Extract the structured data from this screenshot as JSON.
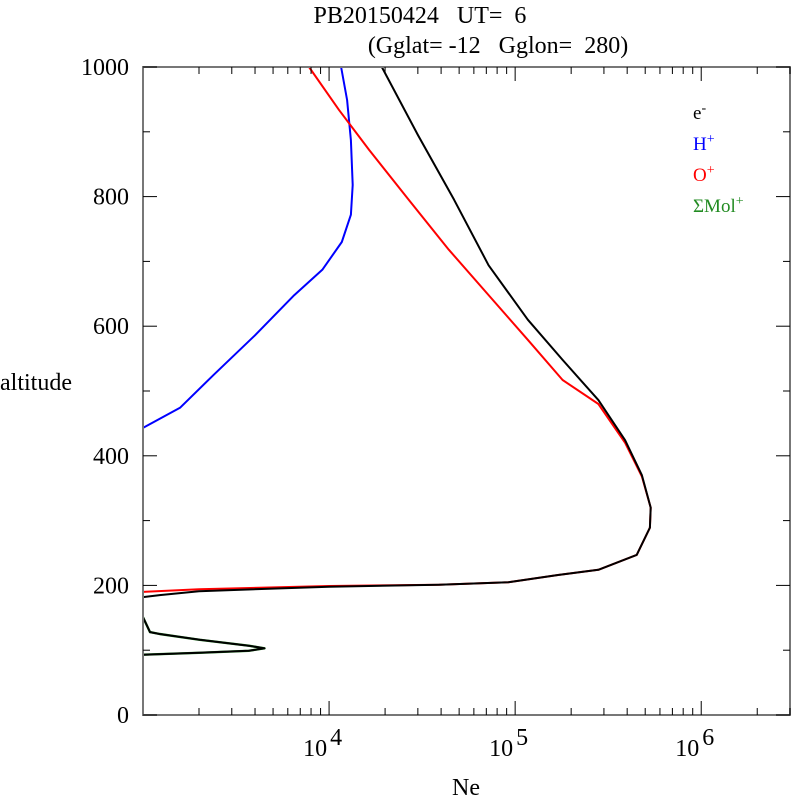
{
  "chart_data": {
    "type": "line",
    "title": "PB20150424   UT=  6",
    "subtitle": "(Gglat= -12   Gglon=  280)",
    "xlabel": "Ne",
    "ylabel": "altitude",
    "xscale": "log",
    "xlim": [
      1000,
      3000000
    ],
    "ylim": [
      0,
      1000
    ],
    "yticks": [
      0,
      200,
      400,
      600,
      800,
      1000
    ],
    "ytick_labels": [
      "0",
      "200",
      "400",
      "600",
      "800",
      "1000"
    ],
    "xticks_major": [
      10000,
      100000,
      1000000
    ],
    "xtick_labels": [
      {
        "base": "10",
        "exp": "4"
      },
      {
        "base": "10",
        "exp": "5"
      },
      {
        "base": "10",
        "exp": "6"
      }
    ],
    "grid": false,
    "legend_position": "top-right",
    "series": [
      {
        "name": "e-",
        "label_base": "e",
        "label_sup": "-",
        "color": "#000000",
        "segments": [
          [
            [
              19200,
              1000
            ],
            [
              30000,
              895
            ],
            [
              47000,
              795
            ],
            [
              72000,
              694
            ],
            [
              117000,
              610
            ],
            [
              180000,
              548
            ],
            [
              280000,
              486
            ],
            [
              390000,
              424
            ],
            [
              480000,
              370
            ],
            [
              535000,
              320
            ],
            [
              530000,
              289
            ],
            [
              450000,
              247
            ],
            [
              280000,
              224
            ],
            [
              170000,
              216
            ],
            [
              92000,
              205
            ],
            [
              39000,
              201
            ],
            [
              10000,
              198
            ],
            [
              2000,
              191
            ],
            [
              1230,
              185
            ],
            [
              1000,
              182
            ]
          ],
          [
            [
              1000,
              151
            ],
            [
              1090,
              128
            ],
            [
              1230,
              125
            ],
            [
              2020,
              116
            ],
            [
              3700,
              107
            ],
            [
              4500,
              103
            ],
            [
              3700,
              99
            ],
            [
              2000,
              96
            ],
            [
              1000,
              93
            ]
          ]
        ]
      },
      {
        "name": "H+",
        "label_base": "H",
        "label_sup": "+",
        "color": "#0000ff",
        "segments": [
          [
            [
              11600,
              1000
            ],
            [
              12500,
              949
            ],
            [
              13100,
              887
            ],
            [
              13400,
              818
            ],
            [
              13100,
              772
            ],
            [
              11700,
              730
            ],
            [
              9200,
              687
            ],
            [
              6500,
              648
            ],
            [
              4000,
              586
            ],
            [
              2400,
              525
            ],
            [
              1580,
              474
            ],
            [
              1000,
              443
            ]
          ]
        ]
      },
      {
        "name": "O+",
        "label_base": "O",
        "label_sup": "+",
        "color": "#ff0000",
        "segments": [
          [
            [
              7800,
              1000
            ],
            [
              11300,
              934
            ],
            [
              16400,
              872
            ],
            [
              26800,
              795
            ],
            [
              44000,
              718
            ],
            [
              72000,
              648
            ],
            [
              117000,
              579
            ],
            [
              180000,
              517
            ],
            [
              280000,
              480
            ],
            [
              390000,
              420
            ],
            [
              480000,
              368
            ],
            [
              535000,
              320
            ],
            [
              530000,
              289
            ],
            [
              450000,
              247
            ],
            [
              280000,
              224
            ],
            [
              170000,
              216
            ],
            [
              92000,
              205
            ],
            [
              39000,
              201
            ],
            [
              10000,
              199
            ],
            [
              2000,
              194
            ],
            [
              1000,
              190
            ]
          ]
        ]
      },
      {
        "name": "ΣMol+",
        "label_base": "ΣMol",
        "label_sup": "+",
        "color": "#228b22",
        "segments": [
          [
            [
              1000,
              151
            ],
            [
              1090,
              128
            ],
            [
              1230,
              125
            ],
            [
              2020,
              116
            ],
            [
              3700,
              107
            ],
            [
              4500,
              103
            ],
            [
              3700,
              99
            ],
            [
              2000,
              96
            ],
            [
              1000,
              93
            ]
          ]
        ]
      }
    ]
  }
}
